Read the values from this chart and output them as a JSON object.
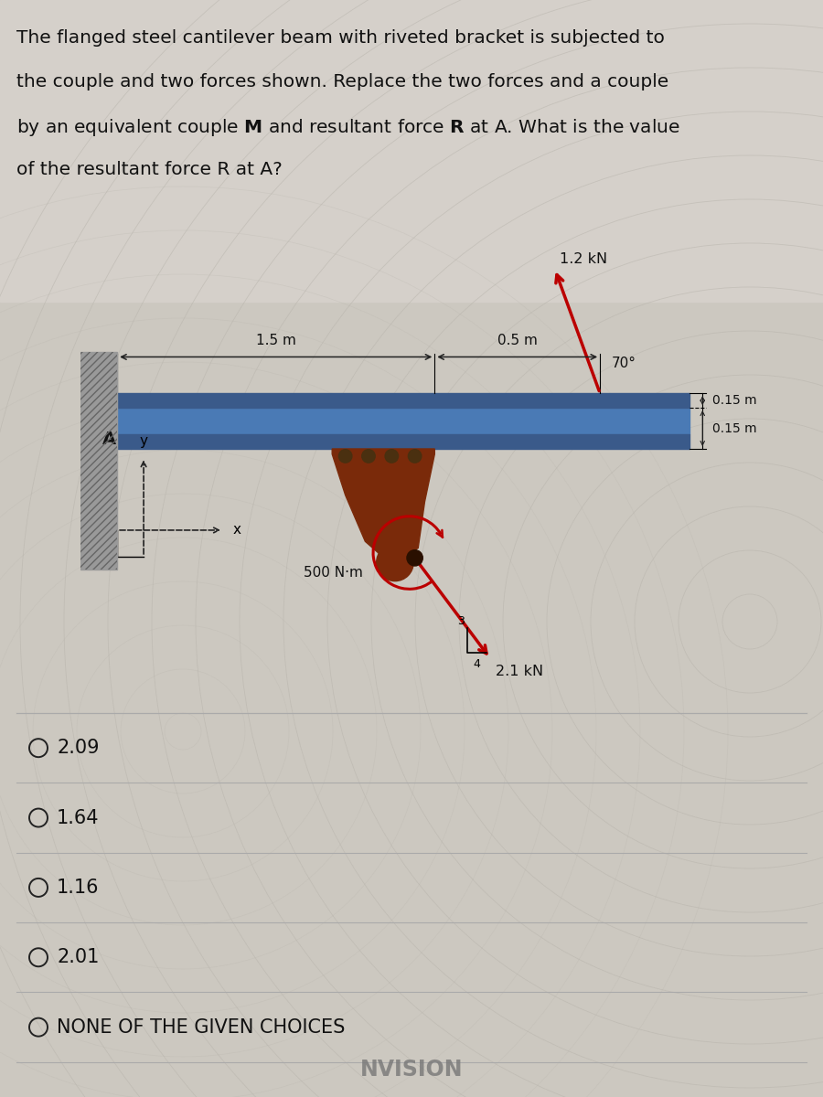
{
  "bg_color": "#ccc8c0",
  "ripple_color": "#b8b4ac",
  "beam_color": "#4a7ab5",
  "beam_dark": "#3a5a8a",
  "bracket_color": "#7a2a0a",
  "wall_color": "#9a9a9a",
  "wall_hatch_color": "#777777",
  "force_color": "#bb0000",
  "text_color": "#111111",
  "line_color": "#222222",
  "title_lines": [
    "The flanged steel cantilever beam with riveted bracket is subjected to",
    "the couple and two forces shown. Replace the two forces and a couple",
    "by an equivalent couple $\\mathbf{M}$ and resultant force $\\mathbf{R}$ at A. What is the value",
    "of the resultant force R at A?"
  ],
  "force1_label": "1.2 kN",
  "force2_label": "2.1 kN",
  "couple_label": "500 N·m",
  "dim1_label": "0.5 m",
  "dim2_label": "1.5 m",
  "angle_label": "70°",
  "dim3_label": "0.15 m",
  "dim4_label": "0.15 m",
  "label_A": "A",
  "label_x": "x",
  "label_y": "y",
  "ratio_3": "3",
  "ratio_4": "4",
  "choices": [
    "2.09",
    "1.64",
    "1.16",
    "2.01",
    "NONE OF THE GIVEN CHOICES"
  ],
  "nvision_label": "NVISION"
}
